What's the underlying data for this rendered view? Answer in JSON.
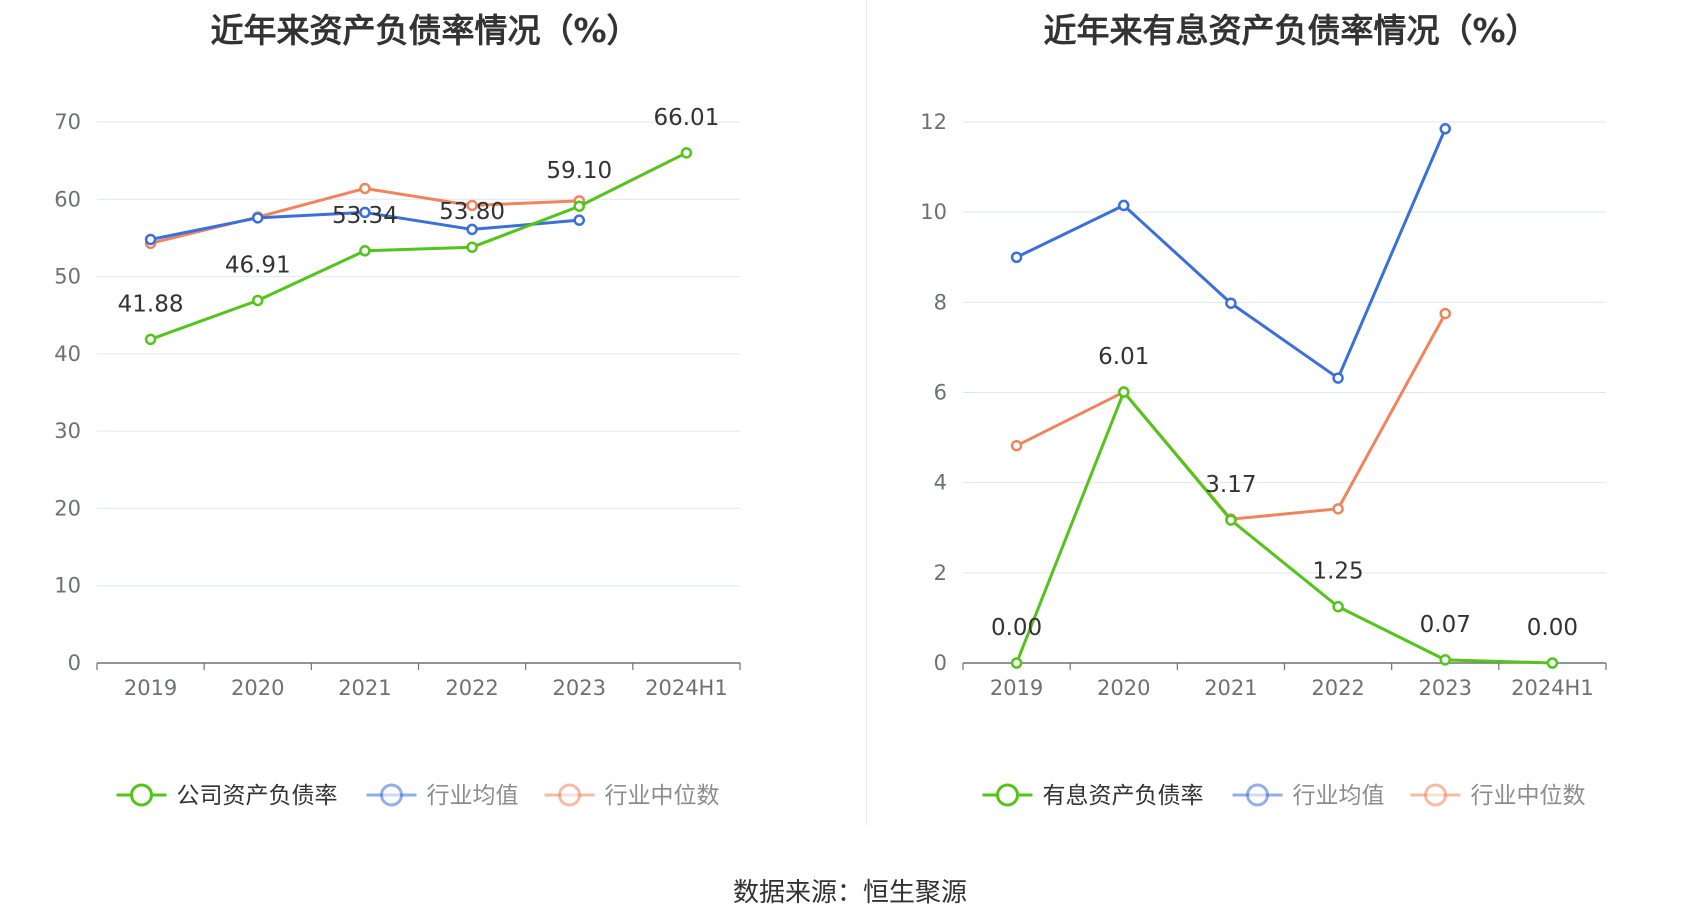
{
  "footer": {
    "source": "数据来源：恒生聚源"
  },
  "colors": {
    "company": "#52c41a",
    "avg": "#3b6fdb",
    "median": "#f0845c",
    "grid": "#e0e6f1",
    "axis": "#6e7079"
  },
  "chart_data": [
    {
      "type": "line",
      "title": "近年来资产负债率情况（%）",
      "categories": [
        "2019",
        "2020",
        "2021",
        "2022",
        "2023",
        "2024H1"
      ],
      "ylim": [
        0,
        70
      ],
      "yticks": [
        0,
        10,
        20,
        30,
        40,
        50,
        60,
        70
      ],
      "grid": true,
      "legend_position": "bottom",
      "series": [
        {
          "name": "公司资产负债率",
          "color": "#52c41a",
          "values": [
            41.88,
            46.91,
            53.34,
            53.8,
            59.1,
            66.01
          ],
          "labels": [
            "41.88",
            "46.91",
            "53.34",
            "53.80",
            "59.10",
            "66.01"
          ]
        },
        {
          "name": "行业均值",
          "color": "#3b6fdb",
          "values": [
            54.8,
            57.6,
            58.3,
            56.1,
            57.3,
            null
          ]
        },
        {
          "name": "行业中位数",
          "color": "#f0845c",
          "values": [
            54.3,
            57.7,
            61.4,
            59.2,
            59.8,
            null
          ]
        }
      ]
    },
    {
      "type": "line",
      "title": "近年来有息资产负债率情况（%）",
      "categories": [
        "2019",
        "2020",
        "2021",
        "2022",
        "2023",
        "2024H1"
      ],
      "ylim": [
        0,
        12
      ],
      "yticks": [
        0,
        2,
        4,
        6,
        8,
        10,
        12
      ],
      "grid": true,
      "legend_position": "bottom",
      "series": [
        {
          "name": "有息资产负债率",
          "color": "#52c41a",
          "values": [
            0.0,
            6.01,
            3.17,
            1.25,
            0.07,
            0.0
          ],
          "labels": [
            "0.00",
            "6.01",
            "3.17",
            "1.25",
            "0.07",
            "0.00"
          ]
        },
        {
          "name": "行业均值",
          "color": "#3b6fdb",
          "values": [
            9.0,
            10.15,
            7.98,
            6.32,
            11.85,
            null
          ]
        },
        {
          "name": "行业中位数",
          "color": "#f0845c",
          "values": [
            4.82,
            6.01,
            3.19,
            3.42,
            7.75,
            null
          ]
        }
      ]
    }
  ]
}
